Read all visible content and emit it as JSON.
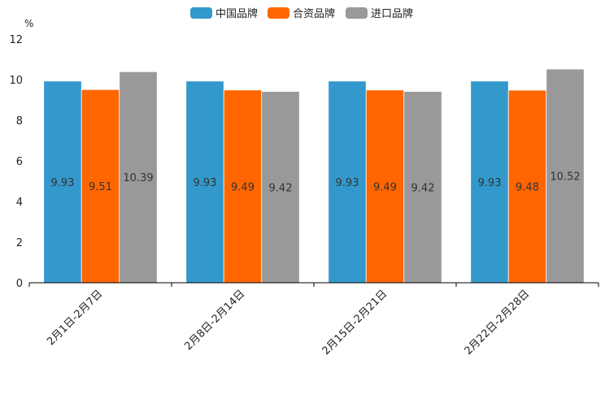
{
  "chart_data": {
    "type": "bar",
    "unit": "%",
    "categories": [
      "2月1日-2月7日",
      "2月8日-2月14日",
      "2月15日-2月21日",
      "2月22日-2月28日"
    ],
    "series": [
      {
        "name": "中国品牌",
        "color": "#3399cc",
        "values": [
          9.93,
          9.93,
          9.93,
          9.93
        ]
      },
      {
        "name": "合资品牌",
        "color": "#ff6600",
        "values": [
          9.51,
          9.49,
          9.49,
          9.48
        ]
      },
      {
        "name": "进口品牌",
        "color": "#999999",
        "values": [
          10.39,
          9.42,
          9.42,
          10.52
        ]
      }
    ],
    "ylim": [
      0,
      12
    ],
    "yticks": [
      "0",
      "2",
      "4",
      "6",
      "8",
      "10",
      "12"
    ],
    "legend_position": "top-center",
    "grid": false
  }
}
